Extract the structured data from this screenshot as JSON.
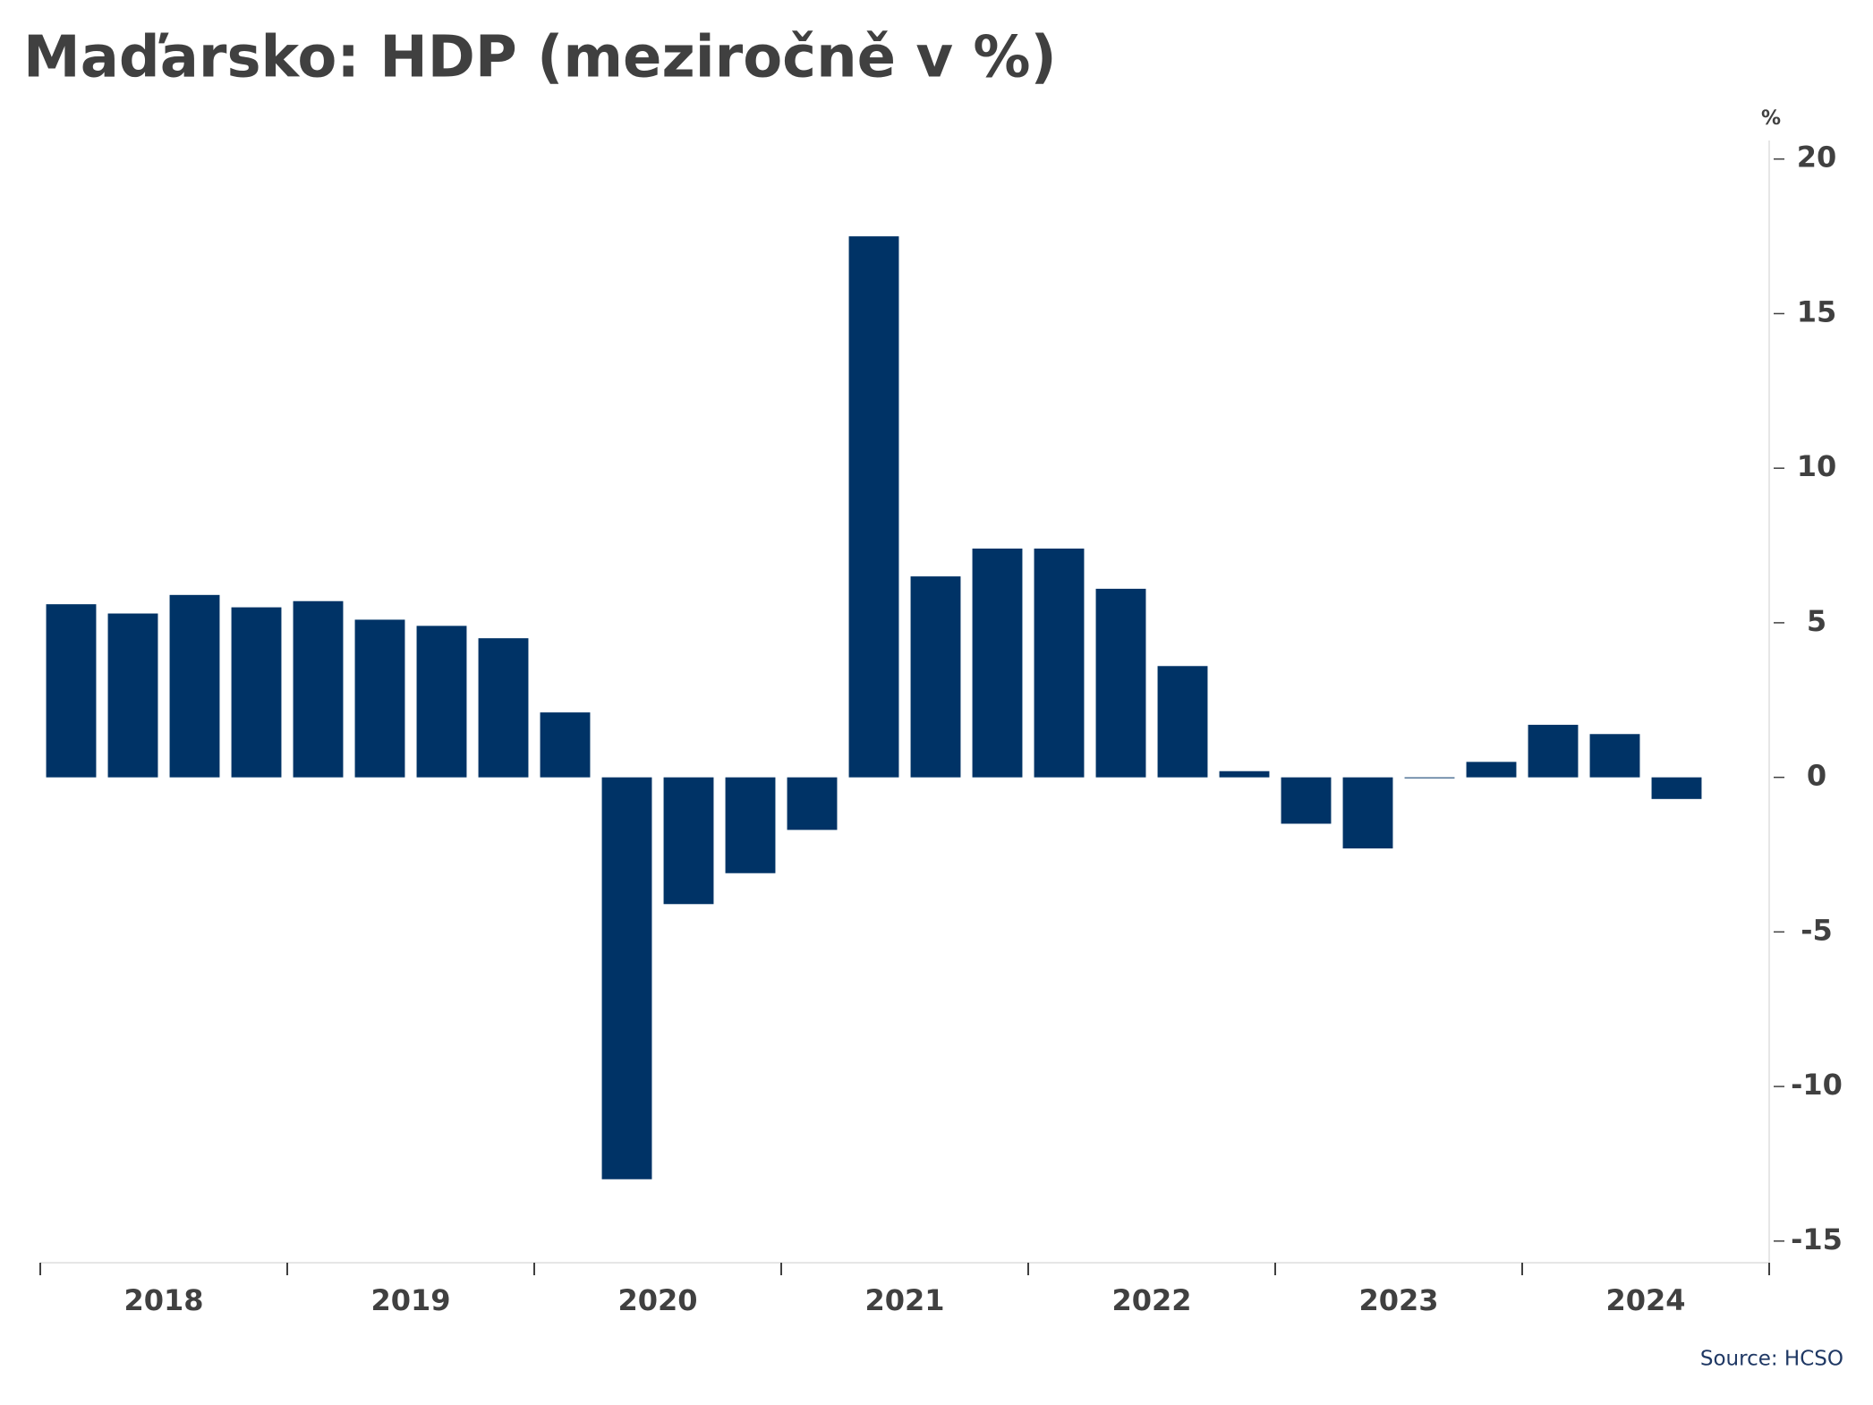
{
  "chart_data": {
    "type": "bar",
    "title": "Maďarsko: HDP (meziročně v %)",
    "years": [
      "2018",
      "2019",
      "2020",
      "2021",
      "2022",
      "2023",
      "2024"
    ],
    "values": [
      5.6,
      5.3,
      5.9,
      5.5,
      5.7,
      5.1,
      4.9,
      4.5,
      2.1,
      -13.0,
      -4.1,
      -3.1,
      -1.7,
      17.5,
      6.5,
      7.4,
      7.4,
      6.1,
      3.6,
      0.2,
      -1.5,
      -2.3,
      0,
      0.5,
      1.7,
      1.4,
      -0.7
    ],
    "color": "#003366",
    "y_axis_label": "%",
    "ylim": [
      -15.7,
      20.6
    ],
    "yticks": [
      -15,
      -10,
      -5,
      0,
      5,
      10,
      15,
      20
    ],
    "source": "Source: HCSO"
  }
}
